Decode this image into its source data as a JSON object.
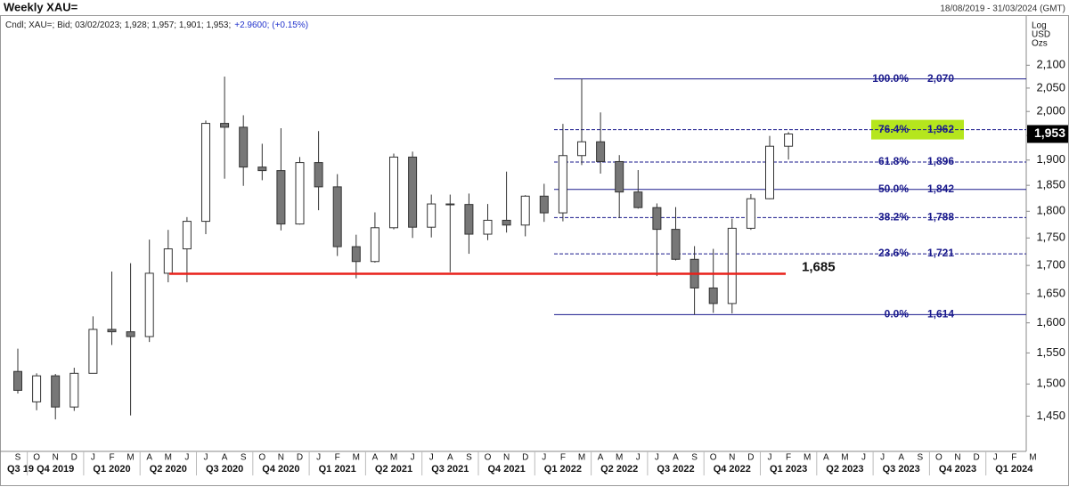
{
  "chart_data": {
    "type": "candlestick",
    "title": "Weekly XAU=",
    "date_range": "18/08/2019 - 31/03/2024 (GMT)",
    "subtitle": "Cndl; XAU=; Bid; 03/02/2023; 1,928; 1,957; 1,901; 1,953;",
    "change": "+2.9600; (+0.15%)",
    "axis_units": [
      "Log",
      "USD",
      "Ozs"
    ],
    "categories": [
      "S",
      "O",
      "N",
      "D",
      "J",
      "F",
      "M",
      "A",
      "M",
      "J",
      "J",
      "A",
      "S",
      "O",
      "N",
      "D",
      "J",
      "F",
      "M",
      "A",
      "M",
      "J",
      "J",
      "A",
      "S",
      "O",
      "N",
      "D",
      "J",
      "F",
      "M",
      "A",
      "M",
      "J",
      "J",
      "A",
      "S",
      "O",
      "N",
      "D",
      "J",
      "F",
      "M",
      "A",
      "M",
      "J",
      "J",
      "A",
      "S",
      "O",
      "N",
      "D",
      "J",
      "F",
      "M"
    ],
    "quarters": [
      "Q3 19",
      "Q4 2019",
      "Q1 2020",
      "Q2 2020",
      "Q3 2020",
      "Q4 2020",
      "Q1 2021",
      "Q2 2021",
      "Q3 2021",
      "Q4 2021",
      "Q1 2022",
      "Q2 2022",
      "Q3 2022",
      "Q4 2022",
      "Q1 2023",
      "Q2 2023",
      "Q3 2023",
      "Q4 2023",
      "Q1 2024"
    ],
    "open": [
      1520,
      1472,
      1513,
      1464,
      1517,
      1589,
      1585,
      1577,
      1686,
      1730,
      1781,
      1975,
      1967,
      1886,
      1879,
      1776,
      1895,
      1847,
      1734,
      1707,
      1769,
      1906,
      1770,
      1814,
      1813,
      1757,
      1783,
      1774,
      1829,
      1797,
      1909,
      1937,
      1897,
      1837,
      1807,
      1766,
      1711,
      1660,
      1633,
      1768,
      1824,
      1928,
      null,
      null,
      null,
      null,
      null,
      null,
      null,
      null,
      null,
      null,
      null,
      null,
      null
    ],
    "high": [
      1557,
      1517,
      1516,
      1526,
      1611,
      1689,
      1704,
      1747,
      1765,
      1789,
      1981,
      2075,
      1992,
      1933,
      1965,
      1906,
      1959,
      1872,
      1756,
      1798,
      1913,
      1917,
      1832,
      1832,
      1834,
      1814,
      1877,
      1831,
      1853,
      1974,
      2070,
      1998,
      1910,
      1880,
      1815,
      1808,
      1735,
      1730,
      1786,
      1833,
      1949,
      1957,
      null,
      null,
      null,
      null,
      null,
      null,
      null,
      null,
      null,
      null,
      null,
      null,
      null
    ],
    "low": [
      1485,
      1459,
      1445,
      1458,
      1517,
      1563,
      1451,
      1568,
      1670,
      1670,
      1757,
      1863,
      1849,
      1860,
      1764,
      1775,
      1802,
      1717,
      1677,
      1705,
      1766,
      1750,
      1751,
      1688,
      1721,
      1746,
      1760,
      1753,
      1780,
      1781,
      1890,
      1873,
      1787,
      1805,
      1681,
      1709,
      1614,
      1617,
      1616,
      1765,
      1823,
      1901,
      null,
      null,
      null,
      null,
      null,
      null,
      null,
      null,
      null,
      null,
      null,
      null,
      null
    ],
    "close": [
      1490,
      1513,
      1464,
      1517,
      1589,
      1585,
      1577,
      1686,
      1730,
      1781,
      1975,
      1967,
      1886,
      1879,
      1776,
      1895,
      1847,
      1734,
      1707,
      1769,
      1906,
      1770,
      1814,
      1813,
      1757,
      1783,
      1774,
      1829,
      1797,
      1909,
      1937,
      1897,
      1837,
      1807,
      1766,
      1711,
      1660,
      1633,
      1768,
      1824,
      1928,
      1953,
      null,
      null,
      null,
      null,
      null,
      null,
      null,
      null,
      null,
      null,
      null,
      null,
      null
    ],
    "up_color": "#ffffff",
    "down_color": "#777777",
    "log_scale": true,
    "ylim": [
      1397,
      2212
    ],
    "yticks": [
      {
        "value": 1450,
        "label": "1,450"
      },
      {
        "value": 1500,
        "label": "1,500"
      },
      {
        "value": 1550,
        "label": "1,550"
      },
      {
        "value": 1600,
        "label": "1,600"
      },
      {
        "value": 1650,
        "label": "1,650"
      },
      {
        "value": 1700,
        "label": "1,700"
      },
      {
        "value": 1750,
        "label": "1,750"
      },
      {
        "value": 1800,
        "label": "1,800"
      },
      {
        "value": 1850,
        "label": "1,850"
      },
      {
        "value": 1900,
        "label": "1,900"
      },
      {
        "value": 1950,
        "label": "1,950"
      },
      {
        "value": 2000,
        "label": "2,000"
      },
      {
        "value": 2050,
        "label": "2,050"
      },
      {
        "value": 2100,
        "label": "2,100"
      }
    ],
    "fib_levels": [
      {
        "label": "100.0%",
        "value": 2070,
        "value_label": "2,070"
      },
      {
        "label": "76.4%",
        "value": 1962,
        "value_label": "1,962"
      },
      {
        "label": "61.8%",
        "value": 1896,
        "value_label": "1,896"
      },
      {
        "label": "50.0%",
        "value": 1842,
        "value_label": "1,842"
      },
      {
        "label": "38.2%",
        "value": 1788,
        "value_label": "1,788"
      },
      {
        "label": "23.6%",
        "value": 1721,
        "value_label": "1,721"
      },
      {
        "label": "0.0%",
        "value": 1614,
        "value_label": "1,614"
      }
    ],
    "fib_color": "#1a1a8c",
    "highlight_color": "#b5e61d",
    "support": {
      "value": 1685,
      "label": "1,685",
      "color": "#e8201a"
    },
    "last_price": {
      "value": 1953,
      "label": "1,953"
    }
  }
}
